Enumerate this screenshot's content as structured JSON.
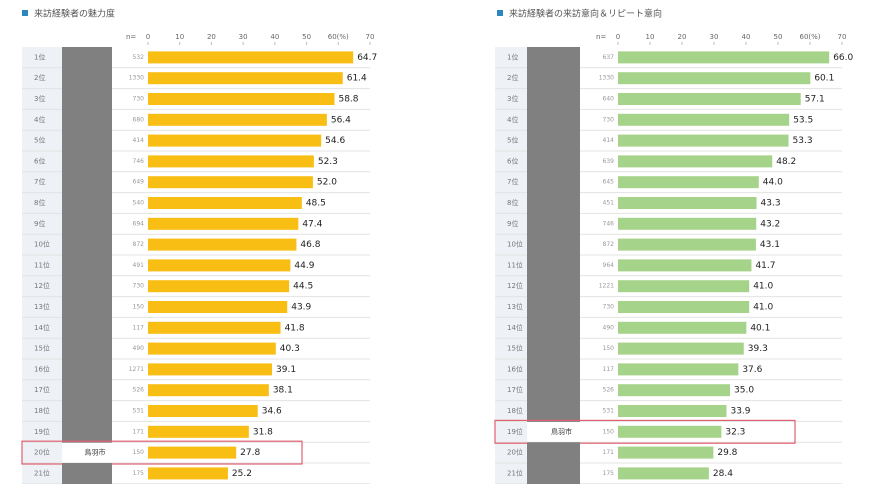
{
  "chart_data": [
    {
      "type": "bar",
      "orientation": "horizontal",
      "title": "来訪経験者の魅力度",
      "n_header": "n=",
      "categories": [
        "1位",
        "2位",
        "3位",
        "4位",
        "5位",
        "6位",
        "7位",
        "8位",
        "9位",
        "10位",
        "11位",
        "12位",
        "13位",
        "14位",
        "15位",
        "16位",
        "17位",
        "18位",
        "19位",
        "20位",
        "21位"
      ],
      "names": [
        null,
        null,
        null,
        null,
        null,
        null,
        null,
        null,
        null,
        null,
        null,
        null,
        null,
        null,
        null,
        null,
        null,
        null,
        null,
        "鳥羽市",
        null
      ],
      "n": [
        532,
        1330,
        730,
        680,
        414,
        746,
        649,
        540,
        694,
        872,
        491,
        730,
        150,
        117,
        490,
        1271,
        526,
        531,
        171,
        150,
        175
      ],
      "values": [
        64.7,
        61.4,
        58.8,
        56.4,
        54.6,
        52.3,
        52.0,
        48.5,
        47.4,
        46.8,
        44.9,
        44.5,
        43.9,
        41.8,
        40.3,
        39.1,
        38.1,
        34.6,
        31.8,
        27.8,
        25.2
      ],
      "value_labels": [
        "64.7",
        "61.4",
        "58.8",
        "56.4",
        "54.6",
        "52.3",
        "52.0",
        "48.5",
        "47.4",
        "46.8",
        "44.9",
        "44.5",
        "43.9",
        "41.8",
        "40.3",
        "39.1",
        "38.1",
        "34.6",
        "31.8",
        "27.8",
        "25.2"
      ],
      "color": "#f9be14",
      "xlim": [
        0,
        70
      ],
      "xticks": [
        0,
        10,
        20,
        30,
        40,
        50,
        {
          "value": 60,
          "label": "60(%)"
        },
        70
      ]
    },
    {
      "type": "bar",
      "orientation": "horizontal",
      "title": "来訪経験者の来訪意向＆リピート意向",
      "n_header": "n=",
      "categories": [
        "1位",
        "2位",
        "3位",
        "4位",
        "5位",
        "6位",
        "7位",
        "8位",
        "9位",
        "10位",
        "11位",
        "12位",
        "13位",
        "14位",
        "15位",
        "16位",
        "17位",
        "18位",
        "19位",
        "20位",
        "21位"
      ],
      "names": [
        null,
        null,
        null,
        null,
        null,
        null,
        null,
        null,
        null,
        null,
        null,
        null,
        null,
        null,
        null,
        null,
        null,
        null,
        "鳥羽市",
        null,
        null
      ],
      "n": [
        637,
        1330,
        640,
        730,
        414,
        639,
        645,
        451,
        746,
        872,
        964,
        1221,
        730,
        490,
        150,
        117,
        526,
        531,
        150,
        171,
        175
      ],
      "values": [
        66.0,
        60.1,
        57.1,
        53.5,
        53.3,
        48.2,
        44.0,
        43.3,
        43.2,
        43.1,
        41.7,
        41.0,
        41.0,
        40.1,
        39.3,
        37.6,
        35.0,
        33.9,
        32.3,
        29.8,
        28.4
      ],
      "value_labels": [
        "66.0",
        "60.1",
        "57.1",
        "53.5",
        "53.3",
        "48.2",
        "44.0",
        "43.3",
        "43.2",
        "43.1",
        "41.7",
        "41.0",
        "41.0",
        "40.1",
        "39.3",
        "37.6",
        "35.0",
        "33.9",
        "32.3",
        "29.8",
        "28.4"
      ],
      "color": "#a6d38a",
      "xlim": [
        0,
        70
      ],
      "xticks": [
        0,
        10,
        20,
        30,
        40,
        50,
        {
          "value": 60,
          "label": "60(%)"
        },
        70
      ]
    }
  ]
}
